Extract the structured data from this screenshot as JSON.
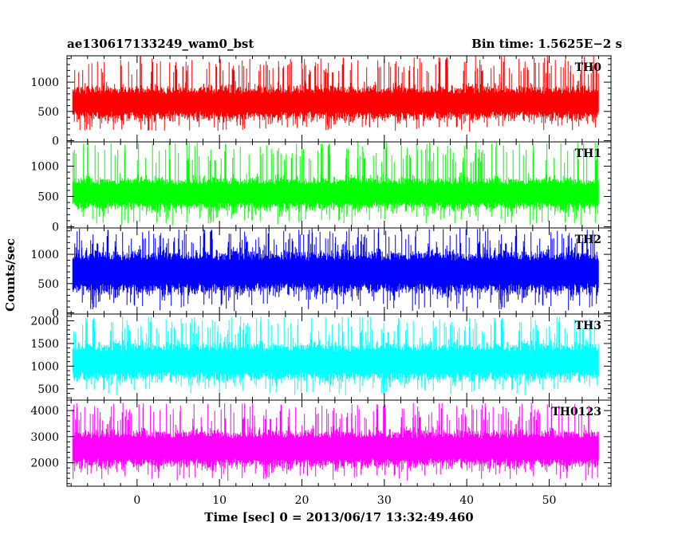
{
  "header": {
    "left_title": "ae130617133249_wam0_bst",
    "right_title": "Bin time: 1.5625E−2 s"
  },
  "chart_data": {
    "type": "line",
    "xlabel": "Time [sec] 0 = 2013/06/17 13:32:49.460",
    "ylabel": "Counts/sec",
    "xlim": [
      -8.5,
      57.5
    ],
    "data_xrange": [
      -7.8,
      56.0
    ],
    "x_ticks": [
      0,
      10,
      20,
      30,
      40,
      50
    ],
    "x_tick_labels": [
      "0",
      "10",
      "20",
      "30",
      "40",
      "50"
    ],
    "grid": false,
    "panels": [
      {
        "label": "TH0",
        "color": "#ff0000",
        "ylim": [
          -20,
          1450
        ],
        "y_ticks": [
          0,
          500,
          1000
        ],
        "y_tick_labels": [
          "0",
          "500",
          "1000"
        ],
        "mean": 650,
        "core_halfwidth": 260,
        "spike_max": 1450,
        "spike_min": 150
      },
      {
        "label": "TH1",
        "color": "#00ff00",
        "ylim": [
          -20,
          1400
        ],
        "y_ticks": [
          0,
          500,
          1000
        ],
        "y_tick_labels": [
          "0",
          "500",
          "1000"
        ],
        "mean": 550,
        "core_halfwidth": 240,
        "spike_max": 1400,
        "spike_min": 20
      },
      {
        "label": "TH2",
        "color": "#0000ff",
        "ylim": [
          -20,
          1450
        ],
        "y_ticks": [
          0,
          500,
          1000
        ],
        "y_tick_labels": [
          "0",
          "500",
          "1000"
        ],
        "mean": 700,
        "core_halfwidth": 330,
        "spike_max": 1450,
        "spike_min": 20
      },
      {
        "label": "TH3",
        "color": "#00ffff",
        "ylim": [
          250,
          2150
        ],
        "y_ticks": [
          500,
          1000,
          1500,
          2000
        ],
        "y_tick_labels": [
          "500",
          "1000",
          "1500",
          "2000"
        ],
        "mean": 1100,
        "core_halfwidth": 380,
        "spike_max": 2100,
        "spike_min": 350
      },
      {
        "label": "TH0123",
        "color": "#ff00ff",
        "ylim": [
          1100,
          4400
        ],
        "y_ticks": [
          2000,
          3000,
          4000
        ],
        "y_tick_labels": [
          "2000",
          "3000",
          "4000"
        ],
        "mean": 2550,
        "core_halfwidth": 650,
        "spike_max": 4300,
        "spike_min": 1300
      }
    ]
  }
}
